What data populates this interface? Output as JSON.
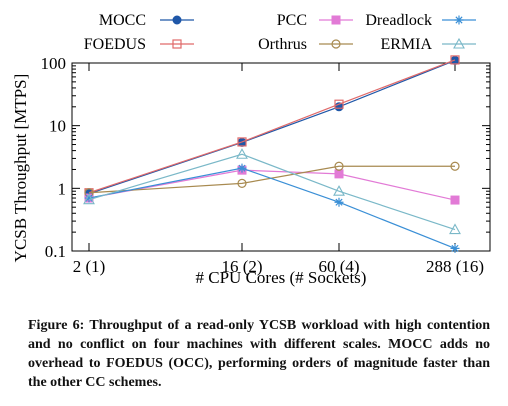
{
  "chart_data": {
    "type": "line",
    "ylabel": "YCSB Throughput [MTPS]",
    "xlabel": "# CPU Cores (# Sockets)",
    "categories": [
      "2 (1)",
      "16 (2)",
      "60 (4)",
      "288 (16)"
    ],
    "y_scale": "log",
    "ylim": [
      0.1,
      100
    ],
    "y_ticks": [
      "0.1",
      "1",
      "10",
      "100"
    ],
    "grid": false,
    "legend_position": "top",
    "series": [
      {
        "name": "MOCC",
        "values": [
          0.82,
          5.4,
          20,
          110
        ],
        "color": "#1f57a8",
        "marker": "circle-filled"
      },
      {
        "name": "FOEDUS",
        "values": [
          0.85,
          5.5,
          22,
          112
        ],
        "color": "#e06a6a",
        "marker": "square-open"
      },
      {
        "name": "PCC",
        "values": [
          0.7,
          1.95,
          1.7,
          0.65
        ],
        "color": "#e27ad6",
        "marker": "square-filled"
      },
      {
        "name": "Orthrus",
        "values": [
          0.85,
          1.2,
          2.25,
          2.25
        ],
        "color": "#a88a50",
        "marker": "circle-open"
      },
      {
        "name": "Dreadlock",
        "values": [
          0.7,
          2.1,
          0.6,
          0.11
        ],
        "color": "#3a8fd6",
        "marker": "asterisk"
      },
      {
        "name": "ERMIA",
        "values": [
          0.66,
          3.5,
          0.9,
          0.22
        ],
        "color": "#7ab8c8",
        "marker": "triangle-open"
      }
    ]
  },
  "caption": "Figure 6:  Throughput of a read-only YCSB workload with high contention and no conflict on four machines with different scales. MOCC adds no overhead to FOEDUS (OCC), performing orders of magnitude faster than the other CC schemes."
}
